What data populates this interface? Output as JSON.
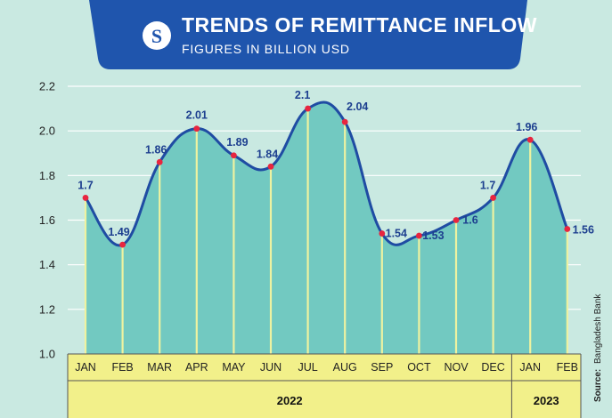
{
  "header": {
    "title": "TRENDS OF REMITTANCE INFLOW",
    "subtitle": "FIGURES IN BILLION USD",
    "logo_letter": "S"
  },
  "source_note": {
    "label": "Source:",
    "text": "Bangladesh Bank"
  },
  "colors": {
    "banner": "#1f55ad",
    "line": "#1f4ca3",
    "fill": "#72c9c1",
    "marker": "#e8253f",
    "stem": "#eef2a0",
    "axis_band": "#f2f08a"
  },
  "chart_data": {
    "type": "area",
    "title": "TRENDS OF REMITTANCE INFLOW",
    "subtitle": "FIGURES IN BILLION USD",
    "ylabel": "",
    "xlabel": "",
    "ylim": [
      1.0,
      2.2
    ],
    "yticks": [
      "1.0",
      "1.2",
      "1.4",
      "1.6",
      "1.8",
      "2.0",
      "2.2"
    ],
    "grid": true,
    "categories": [
      "JAN",
      "FEB",
      "MAR",
      "APR",
      "MAY",
      "JUN",
      "JUL",
      "AUG",
      "SEP",
      "OCT",
      "NOV",
      "DEC",
      "JAN",
      "FEB"
    ],
    "values": [
      1.7,
      1.49,
      1.86,
      2.01,
      1.89,
      1.84,
      2.1,
      2.04,
      1.54,
      1.53,
      1.6,
      1.7,
      1.96,
      1.56
    ],
    "labels": [
      "1.7",
      "1.49",
      "1.86",
      "2.01",
      "1.89",
      "1.84",
      "2.1",
      "2.04",
      "1.54",
      "1.53",
      "1.6",
      "1.7",
      "1.96",
      "1.56"
    ],
    "year_groups": [
      {
        "label": "2022",
        "start": 0,
        "end": 11
      },
      {
        "label": "2023",
        "start": 12,
        "end": 13
      }
    ]
  }
}
